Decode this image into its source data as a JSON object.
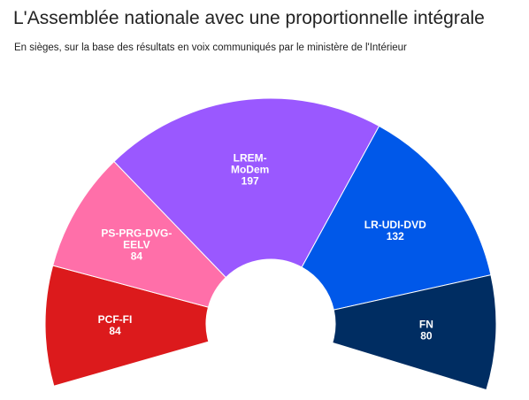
{
  "header": {
    "title": "L'Assemblée nationale avec une proportionnelle intégrale",
    "subtitle": "En sièges, sur la base des résultats en voix communiqués par le ministère de l'Intérieur"
  },
  "chart_data": {
    "type": "pie",
    "variant": "parliament-semicircle",
    "title": "L'Assemblée nationale avec une proportionnelle intégrale",
    "subtitle": "En sièges, sur la base des résultats en voix communiqués par le ministère de l'Intérieur",
    "categories": [
      "PCF-FI",
      "PS-PRG-DVG-EELV",
      "LREM-MoDem",
      "LR-UDI-DVD",
      "FN"
    ],
    "label_lines": [
      [
        "PCF-FI"
      ],
      [
        "PS-PRG-DVG-",
        "EELV"
      ],
      [
        "LREM-",
        "MoDem"
      ],
      [
        "LR-UDI-DVD"
      ],
      [
        "FN"
      ]
    ],
    "values": [
      84,
      84,
      197,
      132,
      80
    ],
    "colors": [
      "#dc1a1c",
      "#ff6fa9",
      "#9a58ff",
      "#0058e9",
      "#002d62"
    ],
    "label_color": "#ffffff",
    "legend": "none"
  }
}
